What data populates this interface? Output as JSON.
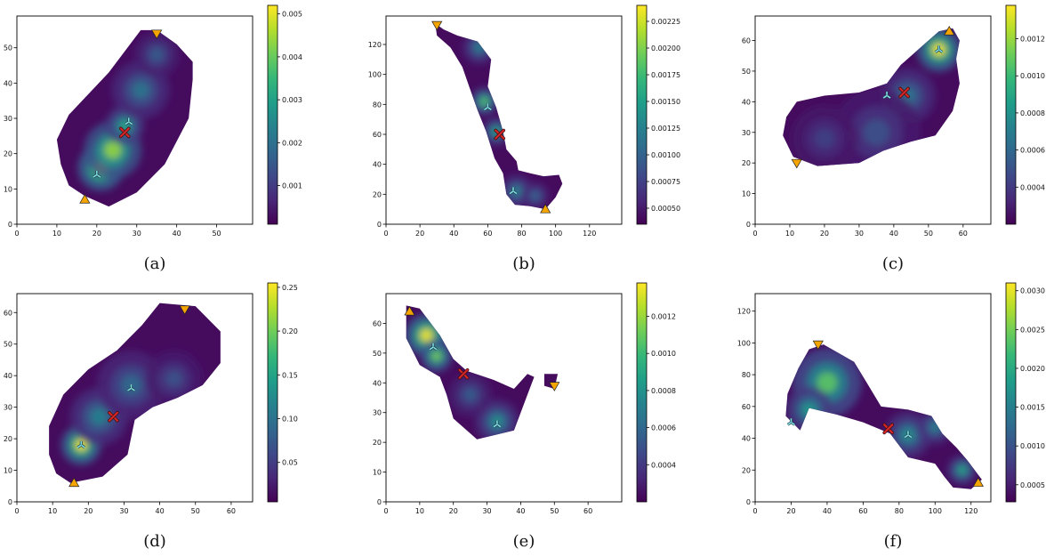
{
  "chart_data": [
    {
      "type": "heatmap",
      "panel_label": "(a)",
      "xlim": [
        0,
        59
      ],
      "ylim": [
        0,
        59
      ],
      "xticks": [
        0,
        10,
        20,
        30,
        40,
        50
      ],
      "yticks": [
        0,
        10,
        20,
        30,
        40,
        50
      ],
      "colorbar": {
        "min": 0.0001,
        "max": 0.0052,
        "ticks": [
          0.001,
          0.002,
          0.003,
          0.004,
          0.005
        ],
        "tick_labels": [
          "0.001",
          "0.002",
          "0.003",
          "0.004",
          "0.005"
        ]
      },
      "region": [
        [
          17,
          8
        ],
        [
          23,
          5
        ],
        [
          30,
          9
        ],
        [
          37,
          17
        ],
        [
          43,
          30
        ],
        [
          44,
          41
        ],
        [
          44,
          46
        ],
        [
          40,
          51
        ],
        [
          35,
          55
        ],
        [
          31,
          55
        ],
        [
          27,
          49
        ],
        [
          23,
          43
        ],
        [
          18,
          37
        ],
        [
          13,
          31
        ],
        [
          10,
          24
        ],
        [
          11,
          17
        ],
        [
          13,
          11
        ]
      ],
      "hotspots": [
        [
          21,
          16,
          3.6,
          1.0
        ],
        [
          24,
          21,
          4.5,
          0.85
        ],
        [
          27,
          28,
          3,
          0.6
        ],
        [
          31,
          38,
          4.5,
          0.4
        ],
        [
          35,
          48,
          3.5,
          0.3
        ]
      ],
      "markers": {
        "start": [
          17,
          7
        ],
        "goal": [
          35,
          54
        ],
        "x_mark": [
          27,
          26
        ],
        "waypoints": [
          [
            28,
            29
          ],
          [
            20,
            14
          ]
        ]
      }
    },
    {
      "type": "heatmap",
      "panel_label": "(b)",
      "xlim": [
        0,
        139
      ],
      "ylim": [
        0,
        139
      ],
      "xticks": [
        0,
        20,
        40,
        60,
        80,
        100,
        120
      ],
      "yticks": [
        0,
        20,
        40,
        60,
        80,
        100,
        120
      ],
      "colorbar": {
        "min": 0.00035,
        "max": 0.0024,
        "ticks": [
          0.0005,
          0.00075,
          0.001,
          0.00125,
          0.0015,
          0.00175,
          0.002,
          0.00225
        ],
        "tick_labels": [
          "0.00050",
          "0.00075",
          "0.00100",
          "0.00125",
          "0.00150",
          "0.00175",
          "0.00200",
          "0.00225"
        ]
      },
      "region": [
        [
          29,
          134
        ],
        [
          34,
          130
        ],
        [
          42,
          126
        ],
        [
          54,
          122
        ],
        [
          62,
          110
        ],
        [
          60,
          92
        ],
        [
          65,
          78
        ],
        [
          69,
          62
        ],
        [
          71,
          50
        ],
        [
          77,
          42
        ],
        [
          78,
          36
        ],
        [
          85,
          34
        ],
        [
          93,
          32
        ],
        [
          102,
          33
        ],
        [
          104,
          27
        ],
        [
          100,
          18
        ],
        [
          94,
          10
        ],
        [
          85,
          12
        ],
        [
          76,
          13
        ],
        [
          71,
          20
        ],
        [
          69,
          34
        ],
        [
          64,
          44
        ],
        [
          59,
          62
        ],
        [
          54,
          76
        ],
        [
          49,
          92
        ],
        [
          45,
          105
        ],
        [
          38,
          118
        ],
        [
          30,
          126
        ]
      ],
      "hotspots": [
        [
          58,
          82,
          5,
          0.75
        ],
        [
          65,
          62,
          5,
          0.6
        ],
        [
          55,
          118,
          6,
          0.45
        ],
        [
          77,
          22,
          6,
          0.45
        ],
        [
          88,
          19,
          5,
          0.35
        ]
      ],
      "markers": {
        "start": [
          94,
          10
        ],
        "goal": [
          30,
          133
        ],
        "x_mark": [
          67,
          60
        ],
        "waypoints": [
          [
            60,
            78
          ],
          [
            75,
            22
          ]
        ]
      }
    },
    {
      "type": "heatmap",
      "panel_label": "(c)",
      "xlim": [
        0,
        68
      ],
      "ylim": [
        0,
        68
      ],
      "xticks": [
        0,
        10,
        20,
        30,
        40,
        50,
        60
      ],
      "yticks": [
        0,
        10,
        20,
        30,
        40,
        50,
        60
      ],
      "colorbar": {
        "min": 0.0002,
        "max": 0.00138,
        "ticks": [
          0.0004,
          0.0006,
          0.0008,
          0.001,
          0.0012
        ],
        "tick_labels": [
          "0.0004",
          "0.0006",
          "0.0008",
          "0.0010",
          "0.0012"
        ]
      },
      "region": [
        [
          8,
          29
        ],
        [
          9,
          35
        ],
        [
          12,
          40
        ],
        [
          20,
          42
        ],
        [
          30,
          43
        ],
        [
          38,
          46
        ],
        [
          42,
          52
        ],
        [
          48,
          58
        ],
        [
          53,
          63
        ],
        [
          57,
          64
        ],
        [
          59,
          60
        ],
        [
          58,
          54
        ],
        [
          59,
          46
        ],
        [
          57,
          37
        ],
        [
          52,
          29
        ],
        [
          45,
          27
        ],
        [
          37,
          24
        ],
        [
          30,
          20
        ],
        [
          18,
          19
        ],
        [
          11,
          22
        ]
      ],
      "hotspots": [
        [
          53,
          57,
          4,
          1.0
        ],
        [
          44,
          42,
          5,
          0.4
        ],
        [
          35,
          30,
          8,
          0.25
        ],
        [
          20,
          28,
          6,
          0.2
        ]
      ],
      "markers": {
        "start": [
          56,
          63
        ],
        "goal": [
          12,
          20
        ],
        "x_mark": [
          43,
          43
        ],
        "waypoints": [
          [
            53,
            57
          ],
          [
            38,
            42
          ]
        ]
      }
    },
    {
      "type": "heatmap",
      "panel_label": "(d)",
      "xlim": [
        0,
        66
      ],
      "ylim": [
        0,
        66
      ],
      "xticks": [
        0,
        10,
        20,
        30,
        40,
        50,
        60
      ],
      "yticks": [
        0,
        10,
        20,
        30,
        40,
        50,
        60
      ],
      "colorbar": {
        "min": 0.005,
        "max": 0.255,
        "ticks": [
          0.05,
          0.1,
          0.15,
          0.2,
          0.25
        ],
        "tick_labels": [
          "0.05",
          "0.10",
          "0.15",
          "0.20",
          "0.25"
        ]
      },
      "region": [
        [
          15,
          6
        ],
        [
          24,
          8
        ],
        [
          31,
          15
        ],
        [
          33,
          26
        ],
        [
          38,
          30
        ],
        [
          45,
          33
        ],
        [
          52,
          37
        ],
        [
          57,
          44
        ],
        [
          57,
          54
        ],
        [
          50,
          62
        ],
        [
          40,
          63
        ],
        [
          35,
          56
        ],
        [
          28,
          48
        ],
        [
          20,
          42
        ],
        [
          13,
          34
        ],
        [
          9,
          24
        ],
        [
          9,
          15
        ],
        [
          11,
          9
        ]
      ],
      "hotspots": [
        [
          18,
          18,
          3.5,
          1.0
        ],
        [
          23,
          27,
          5,
          0.45
        ],
        [
          32,
          37,
          6,
          0.35
        ],
        [
          44,
          39,
          5,
          0.25
        ]
      ],
      "markers": {
        "start": [
          16,
          6
        ],
        "goal": [
          47,
          61
        ],
        "x_mark": [
          27,
          27
        ],
        "waypoints": [
          [
            32,
            36
          ],
          [
            18,
            18
          ]
        ]
      }
    },
    {
      "type": "heatmap",
      "panel_label": "(e)",
      "xlim": [
        0,
        70
      ],
      "ylim": [
        0,
        70
      ],
      "xticks": [
        0,
        10,
        20,
        30,
        40,
        50,
        60
      ],
      "yticks": [
        0,
        10,
        20,
        30,
        40,
        50,
        60
      ],
      "colorbar": {
        "min": 0.0002,
        "max": 0.00138,
        "ticks": [
          0.0004,
          0.0006,
          0.0008,
          0.001,
          0.0012
        ],
        "tick_labels": [
          "0.0004",
          "0.0006",
          "0.0008",
          "0.0010",
          "0.0012"
        ]
      },
      "region": [
        [
          6,
          66
        ],
        [
          10,
          65
        ],
        [
          16,
          56
        ],
        [
          20,
          48
        ],
        [
          24,
          44
        ],
        [
          32,
          41
        ],
        [
          38,
          38
        ],
        [
          42,
          43
        ],
        [
          44,
          42
        ],
        [
          42,
          36
        ],
        [
          40,
          30
        ],
        [
          38,
          24
        ],
        [
          27,
          21
        ],
        [
          20,
          28
        ],
        [
          18,
          36
        ],
        [
          16,
          42
        ],
        [
          10,
          46
        ],
        [
          6,
          55
        ]
      ],
      "islands": [
        [
          [
            47,
            43
          ],
          [
            51,
            43
          ],
          [
            50,
            38
          ],
          [
            47,
            39
          ]
        ]
      ],
      "hotspots": [
        [
          12,
          56,
          4,
          1.0
        ],
        [
          15,
          49,
          3,
          0.8
        ],
        [
          33,
          27,
          4,
          0.5
        ],
        [
          25,
          36,
          4,
          0.3
        ]
      ],
      "markers": {
        "start": [
          7,
          64
        ],
        "goal": [
          50,
          39
        ],
        "x_mark": [
          23,
          43
        ],
        "waypoints": [
          [
            14,
            52
          ],
          [
            33,
            26
          ]
        ]
      }
    },
    {
      "type": "heatmap",
      "panel_label": "(f)",
      "xlim": [
        0,
        131
      ],
      "ylim": [
        0,
        131
      ],
      "xticks": [
        0,
        20,
        40,
        60,
        80,
        100,
        120
      ],
      "yticks": [
        0,
        20,
        40,
        60,
        80,
        100,
        120
      ],
      "colorbar": {
        "min": 0.00028,
        "max": 0.0031,
        "ticks": [
          0.0005,
          0.001,
          0.0015,
          0.002,
          0.0025,
          0.003
        ],
        "tick_labels": [
          "0.0005",
          "0.0010",
          "0.0015",
          "0.0020",
          "0.0025",
          "0.0030"
        ]
      },
      "region": [
        [
          17,
          54
        ],
        [
          25,
          45
        ],
        [
          30,
          59
        ],
        [
          45,
          55
        ],
        [
          60,
          50
        ],
        [
          75,
          43
        ],
        [
          85,
          28
        ],
        [
          100,
          24
        ],
        [
          105,
          16
        ],
        [
          110,
          9
        ],
        [
          120,
          8
        ],
        [
          126,
          14
        ],
        [
          118,
          26
        ],
        [
          112,
          34
        ],
        [
          104,
          43
        ],
        [
          98,
          54
        ],
        [
          85,
          58
        ],
        [
          70,
          60
        ],
        [
          62,
          75
        ],
        [
          55,
          88
        ],
        [
          38,
          99
        ],
        [
          30,
          96
        ],
        [
          24,
          84
        ],
        [
          18,
          68
        ]
      ],
      "hotspots": [
        [
          40,
          75,
          12,
          0.75
        ],
        [
          30,
          58,
          8,
          0.55
        ],
        [
          85,
          42,
          8,
          0.5
        ],
        [
          100,
          47,
          6,
          0.45
        ],
        [
          115,
          20,
          5,
          0.6
        ]
      ],
      "markers": {
        "start": [
          124,
          12
        ],
        "goal": [
          35,
          99
        ],
        "x_mark": [
          74,
          46
        ],
        "waypoints": [
          [
            20,
            50
          ],
          [
            85,
            42
          ]
        ]
      }
    }
  ],
  "colors": {
    "start_marker": "#f5a500",
    "goal_marker": "#f5a500",
    "x_mark": "#d62728",
    "waypoint": "#7fdde0",
    "outside": "#ffffff"
  },
  "colormap": "viridis"
}
